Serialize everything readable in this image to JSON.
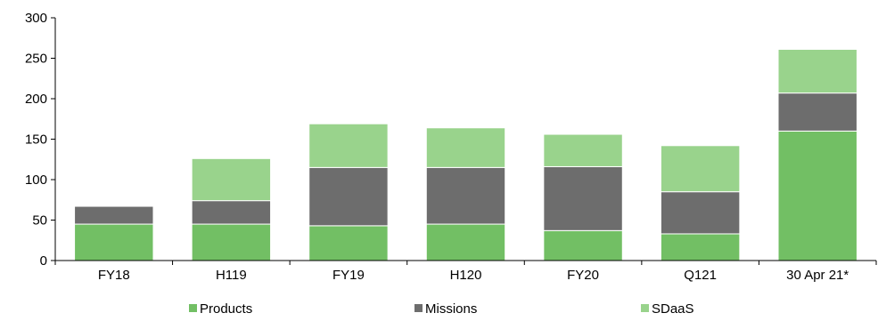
{
  "chart_data": {
    "type": "bar",
    "stacked": true,
    "title": "",
    "xlabel": "",
    "ylabel": "",
    "ylim": [
      0,
      300
    ],
    "yticks": [
      0,
      50,
      100,
      150,
      200,
      250,
      300
    ],
    "categories": [
      "FY18",
      "H119",
      "FY19",
      "H120",
      "FY20",
      "Q121",
      "30 Apr 21*"
    ],
    "series": [
      {
        "name": "Products",
        "color": "#72bf64",
        "values": [
          45,
          45,
          43,
          45,
          37,
          33,
          160
        ]
      },
      {
        "name": "Missions",
        "color": "#6d6d6d",
        "values": [
          22,
          29,
          72,
          70,
          79,
          52,
          47
        ]
      },
      {
        "name": "SDaaS",
        "color": "#99d38c",
        "values": [
          0,
          52,
          54,
          49,
          40,
          57,
          54
        ]
      }
    ],
    "legend_position": "bottom",
    "grid": false
  }
}
